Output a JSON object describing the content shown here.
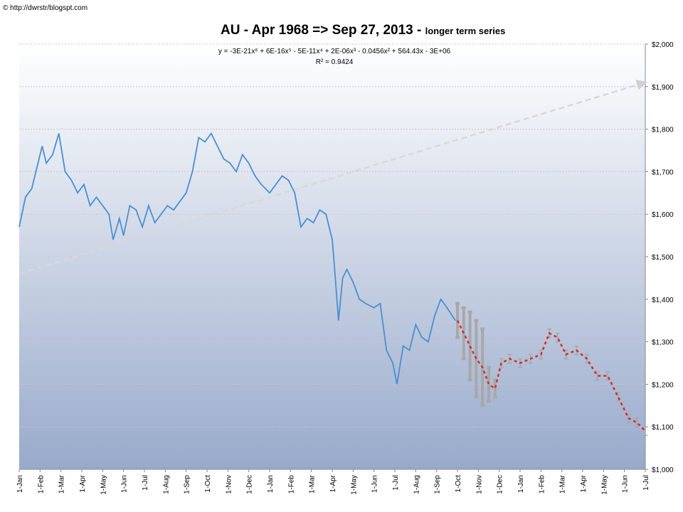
{
  "chart_data": {
    "type": "line",
    "source": "© http://dwrstr/blogspt.com",
    "title": "AU - Apr 1968 => Sep 27, 2013 - ",
    "subtitle": "longer term series",
    "equation": "y = -3E-21x⁶ + 6E-16x⁵ - 5E-11x⁴ + 2E-06x³ - 0.0456x² + 564.43x - 3E+06",
    "r_squared": "R² = 0.9424",
    "xlim": [
      0,
      30
    ],
    "xticks": [
      {
        "value": 0,
        "label": "1-Jan"
      },
      {
        "value": 1,
        "label": "1-Feb"
      },
      {
        "value": 2,
        "label": "1-Mar"
      },
      {
        "value": 3,
        "label": "1-Apr"
      },
      {
        "value": 4,
        "label": "1-May"
      },
      {
        "value": 5,
        "label": "1-Jun"
      },
      {
        "value": 6,
        "label": "1-Jul"
      },
      {
        "value": 7,
        "label": "1-Aug"
      },
      {
        "value": 8,
        "label": "1-Sep"
      },
      {
        "value": 9,
        "label": "1-Oct"
      },
      {
        "value": 10,
        "label": "1-Nov"
      },
      {
        "value": 11,
        "label": "1-Dec"
      },
      {
        "value": 12,
        "label": "1-Jan"
      },
      {
        "value": 13,
        "label": "1-Feb"
      },
      {
        "value": 14,
        "label": "1-Mar"
      },
      {
        "value": 15,
        "label": "1-Apr"
      },
      {
        "value": 16,
        "label": "1-May"
      },
      {
        "value": 17,
        "label": "1-Jun"
      },
      {
        "value": 18,
        "label": "1-Jul"
      },
      {
        "value": 19,
        "label": "1-Aug"
      },
      {
        "value": 20,
        "label": "1-Sep"
      },
      {
        "value": 21,
        "label": "1-Oct"
      },
      {
        "value": 22,
        "label": "1-Nov"
      },
      {
        "value": 23,
        "label": "1-Dec"
      },
      {
        "value": 24,
        "label": "1-Jan"
      },
      {
        "value": 25,
        "label": "1-Feb"
      },
      {
        "value": 26,
        "label": "1-Mar"
      },
      {
        "value": 27,
        "label": "1-Apr"
      },
      {
        "value": 28,
        "label": "1-May"
      },
      {
        "value": 29,
        "label": "1-Jun"
      },
      {
        "value": 30,
        "label": "1-Jul"
      }
    ],
    "ylim": [
      1000,
      2000
    ],
    "yticks": [
      {
        "value": 1000,
        "label": "$1,000"
      },
      {
        "value": 1100,
        "label": "$1,100"
      },
      {
        "value": 1200,
        "label": "$1,200"
      },
      {
        "value": 1300,
        "label": "$1,300"
      },
      {
        "value": 1400,
        "label": "$1,400"
      },
      {
        "value": 1500,
        "label": "$1,500"
      },
      {
        "value": 1600,
        "label": "$1,600"
      },
      {
        "value": 1700,
        "label": "$1,700"
      },
      {
        "value": 1800,
        "label": "$1,800"
      },
      {
        "value": 1900,
        "label": "$1,900"
      },
      {
        "value": 2000,
        "label": "$2,000"
      }
    ],
    "grid": true,
    "series": [
      {
        "color": "#4a8fd0",
        "x": [
          0,
          0.3,
          0.6,
          0.9,
          1.1,
          1.3,
          1.6,
          1.9,
          2.2,
          2.5,
          2.8,
          3.1,
          3.4,
          3.7,
          4.0,
          4.3,
          4.5,
          4.8,
          5.0,
          5.3,
          5.6,
          5.9,
          6.2,
          6.5,
          6.8,
          7.1,
          7.4,
          7.7,
          8.0,
          8.3,
          8.6,
          8.9,
          9.2,
          9.5,
          9.8,
          10.1,
          10.4,
          10.7,
          11.0,
          11.3,
          11.6,
          12.0,
          12.3,
          12.6,
          12.9,
          13.2,
          13.5,
          13.8,
          14.1,
          14.4,
          14.7,
          15.0,
          15.1,
          15.3,
          15.5,
          15.7,
          16.0,
          16.3,
          16.6,
          17.0,
          17.3,
          17.6,
          17.9,
          18.1,
          18.4,
          18.7,
          19.0,
          19.3,
          19.6,
          19.9,
          20.2,
          20.5,
          20.9
        ],
        "values": [
          1570,
          1640,
          1660,
          1720,
          1760,
          1720,
          1740,
          1790,
          1700,
          1680,
          1650,
          1670,
          1620,
          1640,
          1620,
          1600,
          1540,
          1590,
          1550,
          1620,
          1610,
          1570,
          1620,
          1580,
          1600,
          1620,
          1610,
          1630,
          1650,
          1700,
          1780,
          1770,
          1790,
          1760,
          1730,
          1720,
          1700,
          1740,
          1720,
          1690,
          1670,
          1650,
          1670,
          1690,
          1680,
          1650,
          1570,
          1590,
          1580,
          1610,
          1600,
          1540,
          1480,
          1350,
          1450,
          1470,
          1440,
          1400,
          1390,
          1380,
          1390,
          1280,
          1250,
          1200,
          1290,
          1280,
          1340,
          1310,
          1300,
          1360,
          1400,
          1380,
          1350
        ]
      },
      {
        "color": "#d0302a",
        "error_color": "#a8a8a8",
        "x": [
          21.0,
          21.3,
          21.6,
          21.9,
          22.2,
          22.5,
          22.8,
          23.1,
          23.5,
          24.0,
          24.5,
          25.0,
          25.4,
          25.8,
          26.2,
          26.7,
          27.2,
          27.7,
          28.2,
          28.7,
          29.2,
          29.6,
          30.0
        ],
        "values": [
          1350,
          1320,
          1290,
          1260,
          1240,
          1200,
          1190,
          1250,
          1260,
          1250,
          1260,
          1270,
          1320,
          1310,
          1270,
          1280,
          1260,
          1220,
          1220,
          1170,
          1120,
          1110,
          1090
        ],
        "errors": [
          40,
          60,
          80,
          90,
          90,
          40,
          20,
          10,
          10,
          10,
          10,
          10,
          10,
          10,
          10,
          10,
          10,
          10,
          10,
          10,
          10,
          10,
          10
        ]
      }
    ],
    "trendline": {
      "color": "#d8d8d8",
      "x": [
        0,
        30
      ],
      "values": [
        1460,
        1910
      ]
    }
  }
}
